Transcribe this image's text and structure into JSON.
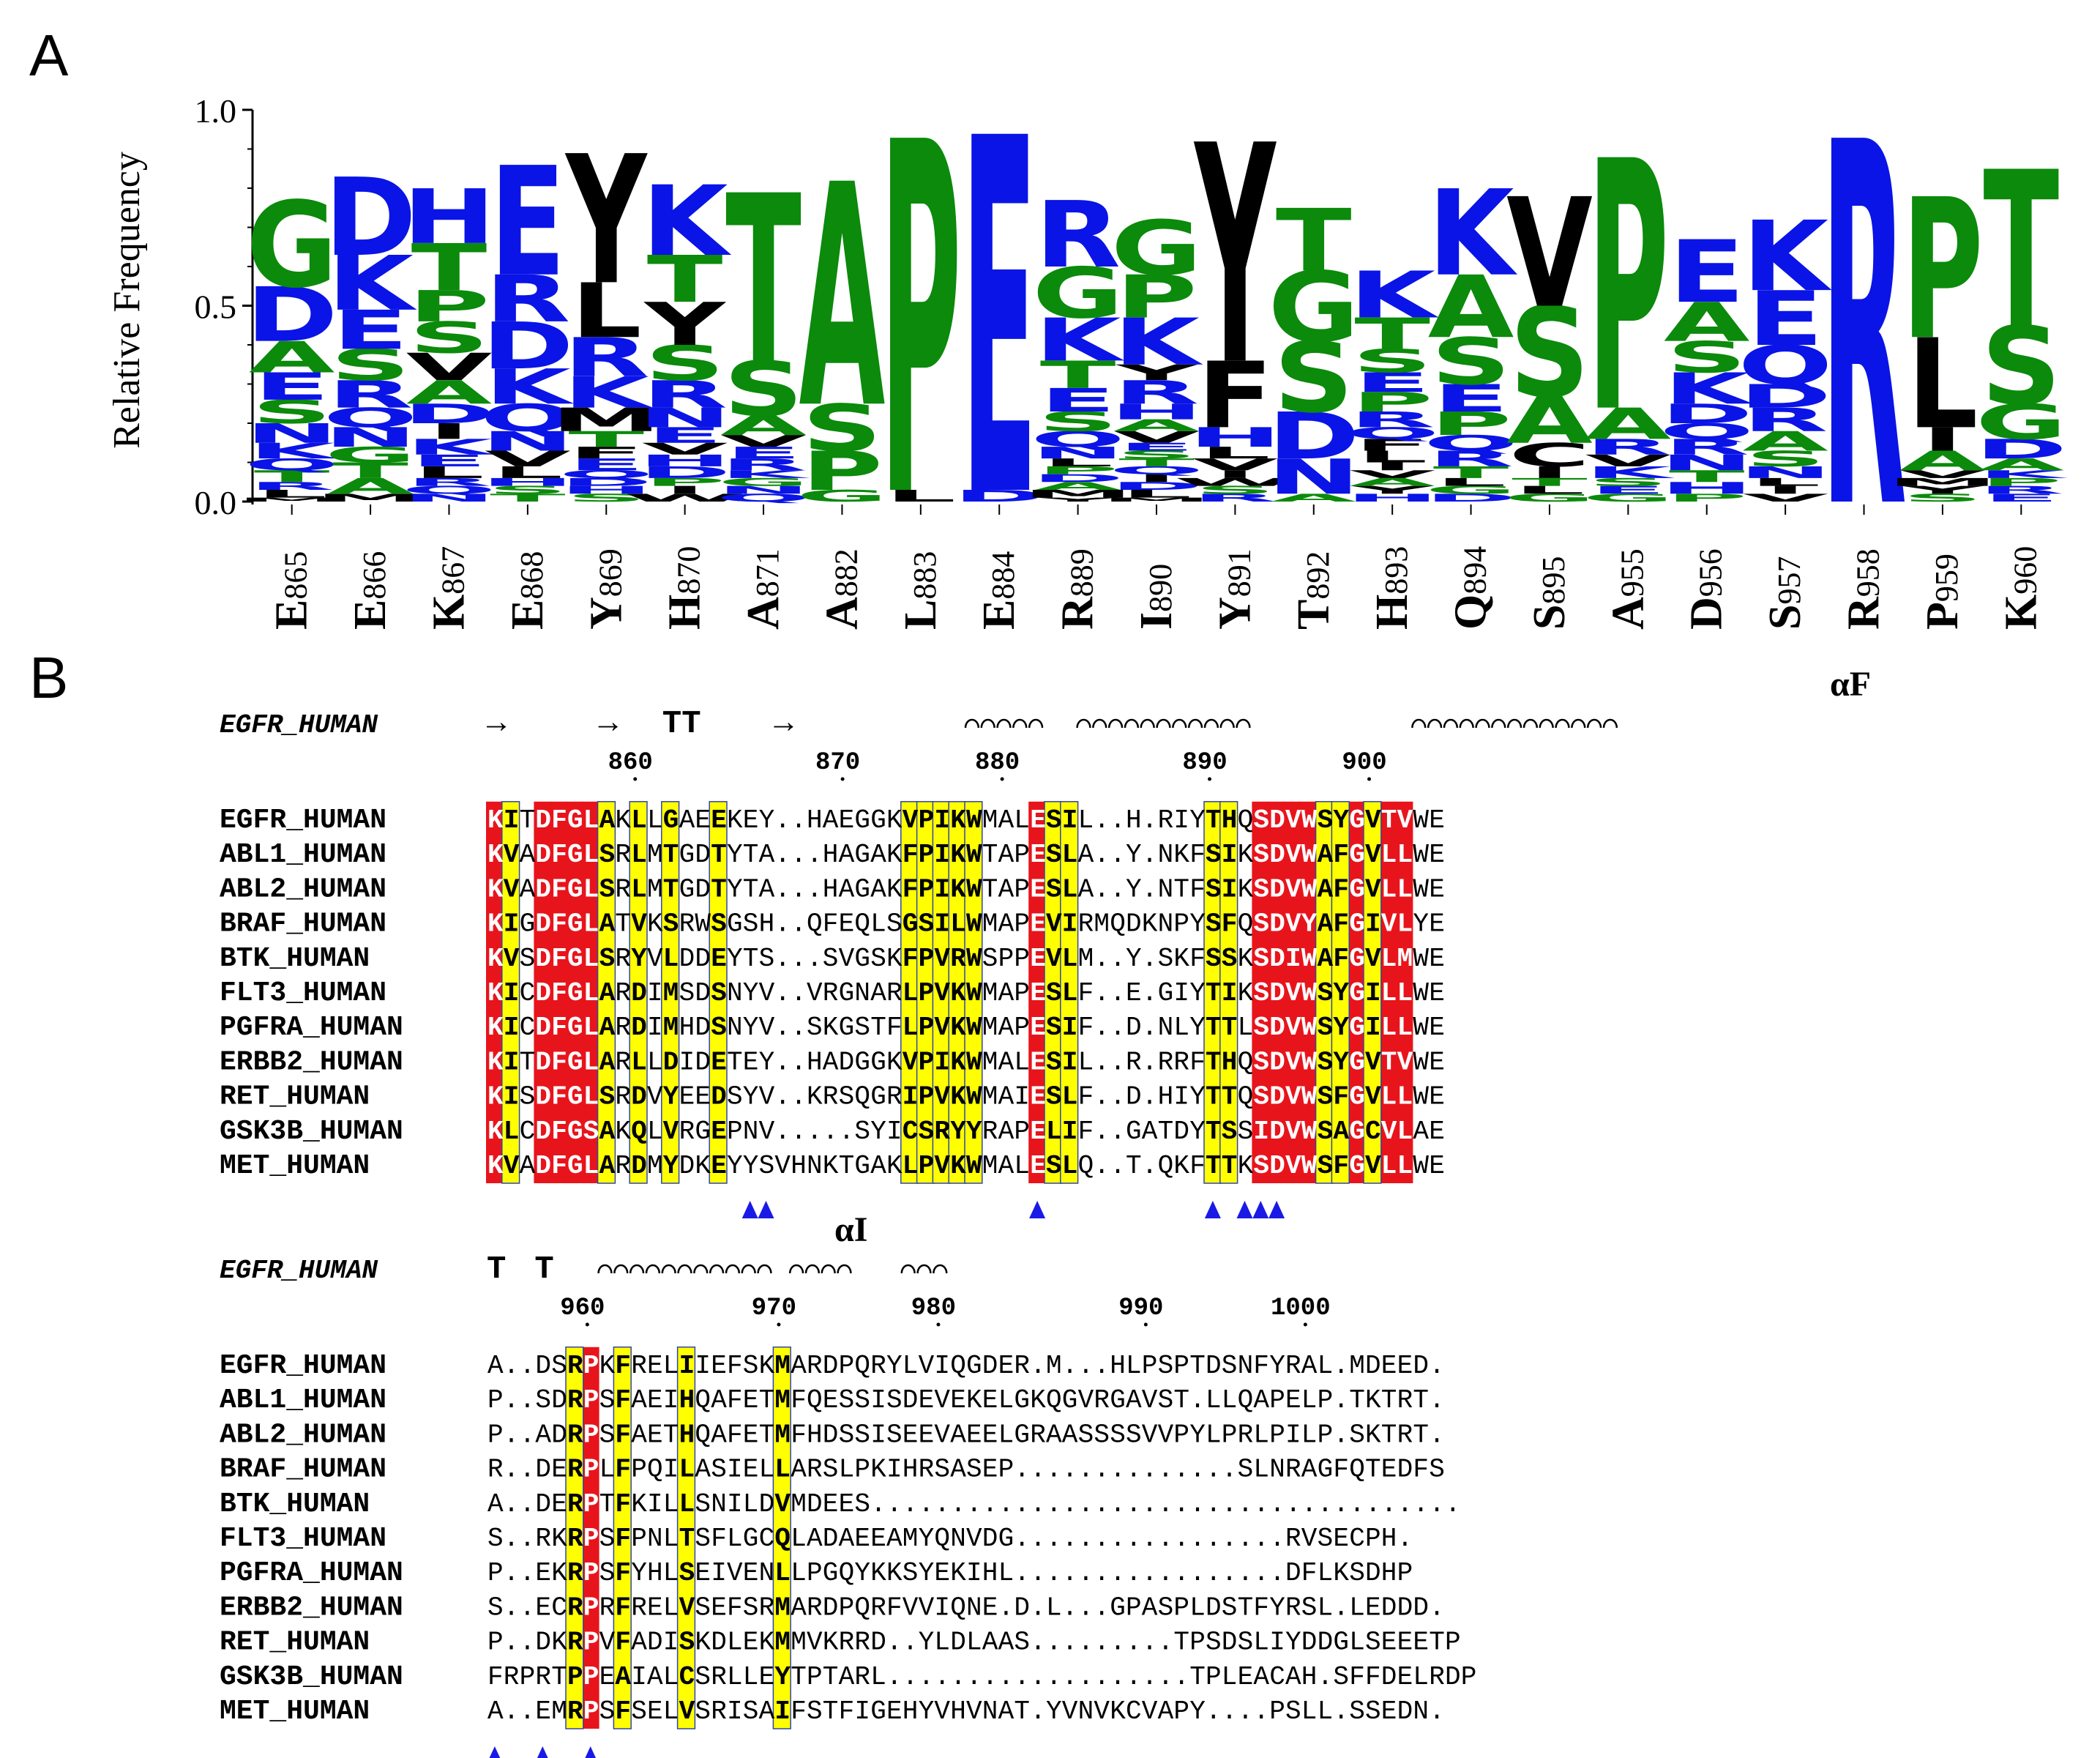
{
  "panel_a": {
    "letter": "A",
    "ylabel": "Relative Frequency",
    "yticks": [
      "1.0",
      "0.5",
      "0.0"
    ],
    "positions": [
      "E865",
      "E866",
      "K867",
      "E868",
      "Y869",
      "H870",
      "A871",
      "A882",
      "L883",
      "E884",
      "R889",
      "I890",
      "Y891",
      "T892",
      "H893",
      "Q894",
      "S895",
      "A955",
      "D956",
      "S957",
      "R958",
      "P959",
      "K960"
    ],
    "columns": [
      [
        [
          "G",
          0.22
        ],
        [
          "D",
          0.14
        ],
        [
          "A",
          0.08
        ],
        [
          "E",
          0.07
        ],
        [
          "S",
          0.06
        ],
        [
          "N",
          0.05
        ],
        [
          "K",
          0.04
        ],
        [
          "Q",
          0.03
        ],
        [
          "T",
          0.03
        ],
        [
          "R",
          0.02
        ],
        [
          "L",
          0.02
        ],
        [
          "M",
          0.01
        ]
      ],
      [
        [
          "D",
          0.2
        ],
        [
          "K",
          0.14
        ],
        [
          "E",
          0.1
        ],
        [
          "S",
          0.08
        ],
        [
          "R",
          0.07
        ],
        [
          "Q",
          0.05
        ],
        [
          "N",
          0.05
        ],
        [
          "G",
          0.04
        ],
        [
          "T",
          0.04
        ],
        [
          "A",
          0.04
        ],
        [
          "M",
          0.02
        ]
      ],
      [
        [
          "H",
          0.14
        ],
        [
          "T",
          0.12
        ],
        [
          "P",
          0.08
        ],
        [
          "S",
          0.08
        ],
        [
          "V",
          0.07
        ],
        [
          "A",
          0.06
        ],
        [
          "D",
          0.05
        ],
        [
          "I",
          0.04
        ],
        [
          "K",
          0.04
        ],
        [
          "E",
          0.03
        ],
        [
          "L",
          0.03
        ],
        [
          "R",
          0.02
        ],
        [
          "Q",
          0.02
        ],
        [
          "N",
          0.02
        ]
      ],
      [
        [
          "E",
          0.28
        ],
        [
          "R",
          0.12
        ],
        [
          "D",
          0.12
        ],
        [
          "K",
          0.09
        ],
        [
          "Q",
          0.07
        ],
        [
          "N",
          0.05
        ],
        [
          "V",
          0.04
        ],
        [
          "L",
          0.03
        ],
        [
          "H",
          0.02
        ],
        [
          "S",
          0.02
        ],
        [
          "T",
          0.02
        ]
      ],
      [
        [
          "Y",
          0.33
        ],
        [
          "L",
          0.14
        ],
        [
          "R",
          0.1
        ],
        [
          "K",
          0.08
        ],
        [
          "M",
          0.06
        ],
        [
          "T",
          0.04
        ],
        [
          "F",
          0.03
        ],
        [
          "E",
          0.03
        ],
        [
          "Q",
          0.02
        ],
        [
          "D",
          0.02
        ],
        [
          "H",
          0.02
        ],
        [
          "S",
          0.02
        ]
      ],
      [
        [
          "K",
          0.18
        ],
        [
          "T",
          0.12
        ],
        [
          "Y",
          0.11
        ],
        [
          "S",
          0.09
        ],
        [
          "R",
          0.07
        ],
        [
          "N",
          0.05
        ],
        [
          "E",
          0.04
        ],
        [
          "V",
          0.03
        ],
        [
          "H",
          0.03
        ],
        [
          "D",
          0.03
        ],
        [
          "P",
          0.02
        ],
        [
          "I",
          0.02
        ],
        [
          "W",
          0.02
        ]
      ],
      [
        [
          "T",
          0.43
        ],
        [
          "S",
          0.14
        ],
        [
          "A",
          0.05
        ],
        [
          "V",
          0.03
        ],
        [
          "E",
          0.03
        ],
        [
          "R",
          0.03
        ],
        [
          "K",
          0.02
        ],
        [
          "G",
          0.02
        ],
        [
          "N",
          0.02
        ],
        [
          "Q",
          0.02
        ]
      ],
      [
        [
          "A",
          0.57
        ],
        [
          "S",
          0.12
        ],
        [
          "P",
          0.1
        ],
        [
          "G",
          0.03
        ]
      ],
      [
        [
          "P",
          0.9
        ],
        [
          "L",
          0.03
        ]
      ],
      [
        [
          "E",
          0.91
        ],
        [
          "D",
          0.03
        ]
      ],
      [
        [
          "R",
          0.17
        ],
        [
          "G",
          0.13
        ],
        [
          "K",
          0.11
        ],
        [
          "T",
          0.07
        ],
        [
          "E",
          0.06
        ],
        [
          "S",
          0.05
        ],
        [
          "Q",
          0.04
        ],
        [
          "N",
          0.03
        ],
        [
          "L",
          0.02
        ],
        [
          "P",
          0.02
        ],
        [
          "D",
          0.02
        ],
        [
          "A",
          0.02
        ],
        [
          "M",
          0.02
        ],
        [
          "Y",
          0.01
        ]
      ],
      [
        [
          "G",
          0.14
        ],
        [
          "P",
          0.11
        ],
        [
          "K",
          0.12
        ],
        [
          "Y",
          0.04
        ],
        [
          "R",
          0.06
        ],
        [
          "H",
          0.04
        ],
        [
          "A",
          0.03
        ],
        [
          "V",
          0.03
        ],
        [
          "E",
          0.02
        ],
        [
          "S",
          0.02
        ],
        [
          "T",
          0.02
        ],
        [
          "Q",
          0.02
        ],
        [
          "I",
          0.02
        ],
        [
          "D",
          0.02
        ],
        [
          "L",
          0.02
        ],
        [
          "M",
          0.01
        ]
      ],
      [
        [
          "Y",
          0.56
        ],
        [
          "F",
          0.17
        ],
        [
          "H",
          0.05
        ],
        [
          "L",
          0.03
        ],
        [
          "V",
          0.03
        ],
        [
          "I",
          0.02
        ],
        [
          "W",
          0.02
        ],
        [
          "S",
          0.02
        ],
        [
          "R",
          0.02
        ]
      ],
      [
        [
          "T",
          0.16
        ],
        [
          "G",
          0.18
        ],
        [
          "S",
          0.18
        ],
        [
          "D",
          0.12
        ],
        [
          "N",
          0.09
        ],
        [
          "A",
          0.02
        ]
      ],
      [
        [
          "K",
          0.12
        ],
        [
          "T",
          0.08
        ],
        [
          "S",
          0.06
        ],
        [
          "E",
          0.05
        ],
        [
          "P",
          0.05
        ],
        [
          "R",
          0.04
        ],
        [
          "Q",
          0.03
        ],
        [
          "F",
          0.03
        ],
        [
          "L",
          0.03
        ],
        [
          "I",
          0.02
        ],
        [
          "V",
          0.02
        ],
        [
          "A",
          0.02
        ],
        [
          "Y",
          0.02
        ],
        [
          "H",
          0.02
        ]
      ],
      [
        [
          "K",
          0.22
        ],
        [
          "A",
          0.16
        ],
        [
          "S",
          0.12
        ],
        [
          "E",
          0.07
        ],
        [
          "P",
          0.06
        ],
        [
          "Q",
          0.04
        ],
        [
          "R",
          0.04
        ],
        [
          "T",
          0.03
        ],
        [
          "L",
          0.02
        ],
        [
          "G",
          0.02
        ],
        [
          "D",
          0.02
        ]
      ],
      [
        [
          "V",
          0.28
        ],
        [
          "S",
          0.23
        ],
        [
          "A",
          0.12
        ],
        [
          "C",
          0.06
        ],
        [
          "I",
          0.03
        ],
        [
          "T",
          0.02
        ],
        [
          "L",
          0.02
        ],
        [
          "G",
          0.02
        ]
      ],
      [
        [
          "P",
          0.64
        ],
        [
          "A",
          0.08
        ],
        [
          "R",
          0.04
        ],
        [
          "V",
          0.03
        ],
        [
          "K",
          0.03
        ],
        [
          "S",
          0.02
        ],
        [
          "E",
          0.02
        ],
        [
          "G",
          0.02
        ]
      ],
      [
        [
          "E",
          0.16
        ],
        [
          "A",
          0.1
        ],
        [
          "S",
          0.08
        ],
        [
          "K",
          0.08
        ],
        [
          "D",
          0.05
        ],
        [
          "Q",
          0.04
        ],
        [
          "R",
          0.04
        ],
        [
          "N",
          0.04
        ],
        [
          "T",
          0.03
        ],
        [
          "H",
          0.03
        ],
        [
          "P",
          0.02
        ]
      ],
      [
        [
          "K",
          0.18
        ],
        [
          "E",
          0.14
        ],
        [
          "Q",
          0.1
        ],
        [
          "D",
          0.06
        ],
        [
          "R",
          0.06
        ],
        [
          "A",
          0.05
        ],
        [
          "S",
          0.04
        ],
        [
          "N",
          0.03
        ],
        [
          "L",
          0.02
        ],
        [
          "I",
          0.02
        ],
        [
          "V",
          0.02
        ]
      ],
      [
        [
          "R",
          0.93
        ]
      ],
      [
        [
          "P",
          0.36
        ],
        [
          "L",
          0.23
        ],
        [
          "I",
          0.06
        ],
        [
          "A",
          0.05
        ],
        [
          "V",
          0.02
        ],
        [
          "M",
          0.02
        ],
        [
          "Y",
          0.02
        ],
        [
          "S",
          0.02
        ]
      ],
      [
        [
          "T",
          0.4
        ],
        [
          "S",
          0.2
        ],
        [
          "G",
          0.09
        ],
        [
          "D",
          0.05
        ],
        [
          "A",
          0.03
        ],
        [
          "K",
          0.02
        ],
        [
          "P",
          0.02
        ],
        [
          "R",
          0.02
        ],
        [
          "E",
          0.02
        ]
      ]
    ],
    "colors": {
      "green": "#0b8a0b",
      "blue": "#0a14e6",
      "black": "#000000"
    }
  },
  "panel_b": {
    "letter": "B",
    "block1": {
      "ss_label": "EGFR_HUMAN",
      "helix_label": "αF",
      "ss_glyphs": [
        "→",
        "→",
        "TT",
        "→"
      ],
      "ruler": [
        {
          "label": "860",
          "col": 9
        },
        {
          "label": "870",
          "col": 22
        },
        {
          "label": "880",
          "col": 32
        },
        {
          "label": "890",
          "col": 45
        },
        {
          "label": "900",
          "col": 55
        }
      ],
      "names": [
        "EGFR_HUMAN",
        "ABL1_HUMAN",
        "ABL2_HUMAN",
        "BRAF_HUMAN",
        "BTK_HUMAN",
        "FLT3_HUMAN",
        "PGFRA_HUMAN",
        "ERBB2_HUMAN",
        "RET_HUMAN",
        "GSK3B_HUMAN",
        "MET_HUMAN"
      ],
      "seqs": [
        "KITDFGLAKLLGAEEKEY..HAEGGKVPIKWMALESIL..H.RIYTHQSDVWSYGVTVWE",
        "KVADFGLSRLMTGDTYTA...HAGAKFPIKWTAPESLA..Y.NKFSIKSDVWAFGVLLWE",
        "KVADFGLSRLMTGDTYTA...HAGAKFPIKWTAPESLA..Y.NTFSIKSDVWAFGVLLWE",
        "KIGDFGLATVKSRWSGSH..QFEQLSGSILWMAPEVIRMQDKNPYSFQSDVYAFGIVLYE",
        "KVSDFGLSRYVLDDEYTS...SVGSKFPVRWSPPEVLM..Y.SKFSSKSDIWAFGVLMWE",
        "KICDFGLARDIMSDSNYV..VRGNARLPVKWMAPESLF..E.GIYTIKSDVWSYGILLWE",
        "KICDFGLARDIMHDSNYV..SKGSTFLPVKWMAPESIF..D.NLYTTLSDVWSYGILLWE",
        "KITDFGLARLLDIDETEY..HADGGKVPIKWMALESIL..R.RRFTHQSDVWSYGVTVWE",
        "KISDFGLSRDVYEEDSYV..KRSQGRIPVKWMAIESLF..D.HIYTTQSDVWSFGVLLWE",
        "KLCDFGSAKQLVRGEPNV.....SYICSRYYRAPELIF..GATDYTSSIDVWSAGCVLAE",
        "KVADFGLARDMYDKEYYSVHNKTGAKLPVKWMALESLQ..T.QKFTTKSDVWSFGVLLWE"
      ],
      "red_cols": [
        0,
        3,
        4,
        5,
        6,
        34,
        48,
        49,
        50,
        51,
        54,
        56,
        57
      ],
      "yellow_cols": [
        1,
        7,
        9,
        11,
        14,
        26,
        27,
        28,
        29,
        30,
        35,
        36,
        45,
        46,
        52,
        53,
        55
      ],
      "arrows": [
        16,
        17,
        34,
        45,
        47,
        48,
        49
      ]
    },
    "block2": {
      "ss_label": "EGFR_HUMAN",
      "helix_label": "αI",
      "ss_glyphs": [
        "T",
        "T"
      ],
      "ruler": [
        {
          "label": "960",
          "col": 6
        },
        {
          "label": "970",
          "col": 18
        },
        {
          "label": "980",
          "col": 28
        },
        {
          "label": "990",
          "col": 41
        },
        {
          "label": "1000",
          "col": 51
        }
      ],
      "names": [
        "EGFR_HUMAN",
        "ABL1_HUMAN",
        "ABL2_HUMAN",
        "BRAF_HUMAN",
        "BTK_HUMAN",
        "FLT3_HUMAN",
        "PGFRA_HUMAN",
        "ERBB2_HUMAN",
        "RET_HUMAN",
        "GSK3B_HUMAN",
        "MET_HUMAN"
      ],
      "seqs": [
        "A..DSRPKFRELIIEFSKMARDPQRYLVIQGDER.M...HLPSPTDSNFYRAL.MDEED.",
        "P..SDRPSFAEIHQAFETMFQESSISDEVEKELGKQGVRGAVST.LLQAPELP.TKTRT.",
        "P..ADRPSFAETHQAFETMFHDSSISEEVAEELGRAASSSSVVPYLPRLPILP.SKTRT.",
        "R..DERPLFPQILASIELLARSLPKIHRSASEP..............SLNRAGFQTEDFS",
        "A..DERPTFKILLSNILDVMDEES.....................................",
        "S..RKRPSFPNLTSFLGCQLADAEEAMYQNVDG.................RVSECPH.",
        "P..EKRPSFYHLSEIVENLLPGQYKKSYEKIHL.................DFLKSDHP",
        "S..ECRPRFRELVSEFSRMARDPQRFVVIQNE.D.L...GPASPLDSTFYRSL.LEDDD.",
        "P..DKRPVFADISKDLEKMMVKRRD..YLDLAAS.........TPSDSLIYDDGLSEEETP",
        "FRPRTPPEAIALCSRLLEYTPTARL...................TPLEACAH.SFFDELRDP",
        "A..EMRPSFSELVSRISAIFSTFIGEHYVHVNAT.YVNVKCVAPY....PSLL.SSEDN."
      ],
      "red_cols": [
        6
      ],
      "yellow_cols": [
        5,
        8,
        12,
        18
      ],
      "arrows": [
        0,
        3,
        6
      ]
    }
  }
}
